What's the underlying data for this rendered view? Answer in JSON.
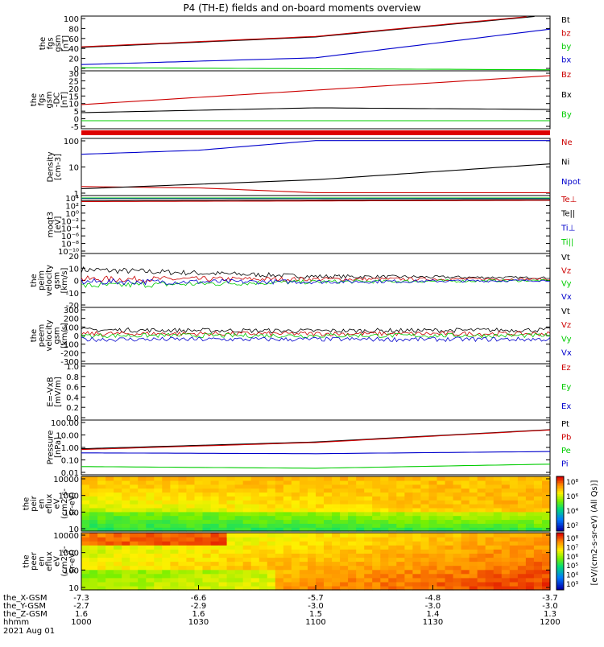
{
  "title": "P4 (TH-E) fields and on-board moments overview",
  "chart_data": [
    {
      "type": "line",
      "ylabel": [
        "the",
        "fgs",
        "gsm",
        "[nT]"
      ],
      "ticks": [
        "100",
        "80",
        "60",
        "40",
        "20",
        "0"
      ],
      "ylim": [
        -5,
        100
      ],
      "series": [
        {
          "name": "Bt",
          "color": "#000000",
          "x": [
            0,
            0.5,
            1
          ],
          "values": [
            40,
            60,
            102
          ]
        },
        {
          "name": "bz",
          "color": "#cc0000",
          "x": [
            0,
            0.5,
            1
          ],
          "values": [
            41,
            61,
            103
          ]
        },
        {
          "name": "by",
          "color": "#00cc00",
          "x": [
            0,
            0.5,
            1
          ],
          "values": [
            1,
            -1,
            -3
          ]
        },
        {
          "name": "bx",
          "color": "#0000cc",
          "x": [
            0,
            0.5,
            1
          ],
          "values": [
            7,
            20,
            75
          ]
        }
      ]
    },
    {
      "type": "line",
      "ylabel": [
        "the",
        "fgs",
        "gsm",
        "-DC",
        "[nT]"
      ],
      "ticks": [
        "30",
        "25",
        "20",
        "15",
        "10",
        "5",
        "0",
        "-5"
      ],
      "ylim": [
        -6,
        30
      ],
      "series": [
        {
          "name": "Bz",
          "color": "#cc0000",
          "x": [
            0,
            0.5,
            1
          ],
          "values": [
            9,
            18,
            27
          ]
        },
        {
          "name": "Bx",
          "color": "#000000",
          "x": [
            0,
            0.5,
            1
          ],
          "values": [
            4,
            7,
            6
          ]
        },
        {
          "name": "By",
          "color": "#00cc00",
          "x": [
            0,
            0.5,
            1
          ],
          "values": [
            -1,
            -1,
            -1
          ]
        }
      ]
    },
    {
      "type": "line",
      "ylabel": [
        "Density",
        "[cm-3]"
      ],
      "ticks": [
        "100",
        "10",
        "1"
      ],
      "log": true,
      "ylim": [
        0.6,
        200
      ],
      "series": [
        {
          "name": "Ne",
          "color": "#cc0000",
          "x": [
            0,
            0.25,
            0.5,
            1
          ],
          "values": [
            1.5,
            1.3,
            0.8,
            0.8
          ]
        },
        {
          "name": "Ni",
          "color": "#000000",
          "x": [
            0,
            0.5,
            1
          ],
          "values": [
            1.2,
            3,
            15
          ]
        },
        {
          "name": "Npot",
          "color": "#0000cc",
          "x": [
            0,
            0.25,
            0.5
          ],
          "values": [
            40,
            60,
            160
          ]
        }
      ]
    },
    {
      "type": "line",
      "ylabel": [
        "moqt3",
        "[eV]"
      ],
      "ticks": [
        "10⁴",
        "10²",
        "10⁰",
        "10⁻²",
        "10⁻⁴",
        "10⁻⁶",
        "10⁻⁸",
        "10⁻¹⁰"
      ],
      "log": true,
      "ylim": [
        -10,
        4.5
      ],
      "series": [
        {
          "name": "Te⊥",
          "color": "#cc0000",
          "x": [
            0,
            1
          ],
          "values": [
            3,
            3.3
          ]
        },
        {
          "name": "Te||",
          "color": "#000000",
          "x": [
            0,
            1
          ],
          "values": [
            3.3,
            3.5
          ]
        },
        {
          "name": "Ti⊥",
          "color": "#0000cc",
          "x": [
            0,
            1
          ],
          "values": [
            3.8,
            3.8
          ]
        },
        {
          "name": "Ti||",
          "color": "#00cc00",
          "x": [
            0,
            1
          ],
          "values": [
            3.9,
            3.9
          ]
        }
      ]
    },
    {
      "type": "line",
      "ylabel": [
        "the",
        "peim",
        "velocity",
        "gsm",
        "[km/s]"
      ],
      "ticks": [
        "20",
        "10",
        "0",
        "-10",
        "-20"
      ],
      "ylim": [
        -20,
        20
      ],
      "series": [
        {
          "name": "Vt",
          "color": "#000000",
          "x": [
            0,
            0.5,
            1
          ],
          "values": [
            8,
            3,
            2
          ]
        },
        {
          "name": "Vz",
          "color": "#cc0000",
          "x": [
            0,
            0.5,
            1
          ],
          "values": [
            1,
            1,
            1
          ]
        },
        {
          "name": "Vy",
          "color": "#00cc00",
          "x": [
            0,
            0.5,
            1
          ],
          "values": [
            -4,
            -1,
            0
          ]
        },
        {
          "name": "Vx",
          "color": "#0000cc",
          "x": [
            0,
            0.5,
            1
          ],
          "values": [
            -1,
            -1,
            0
          ]
        }
      ]
    },
    {
      "type": "line",
      "ylabel": [
        "the",
        "peem",
        "velocity",
        "gsm",
        "[km/s]"
      ],
      "ticks": [
        "300",
        "200",
        "100",
        "0",
        "-100",
        "-200",
        "-300"
      ],
      "ylim": [
        -300,
        300
      ],
      "series": [
        {
          "name": "Vt",
          "color": "#000000",
          "x": [
            0,
            0.5,
            1
          ],
          "values": [
            60,
            50,
            60
          ]
        },
        {
          "name": "Vz",
          "color": "#cc0000",
          "x": [
            0,
            0.5,
            1
          ],
          "values": [
            20,
            20,
            20
          ]
        },
        {
          "name": "Vy",
          "color": "#00cc00",
          "x": [
            0,
            0.5,
            1
          ],
          "values": [
            0,
            0,
            0
          ]
        },
        {
          "name": "Vx",
          "color": "#0000cc",
          "x": [
            0,
            0.5,
            1
          ],
          "values": [
            -40,
            -40,
            -40
          ]
        }
      ]
    },
    {
      "type": "line",
      "ylabel": [
        "E=-VxB",
        "[mV/m]"
      ],
      "ticks": [
        "1.0",
        "0.8",
        "0.6",
        "0.4",
        "0.2",
        "0.0"
      ],
      "ylim": [
        0,
        1
      ],
      "series": [
        {
          "name": "Ez",
          "color": "#cc0000",
          "x": [],
          "values": []
        },
        {
          "name": "Ey",
          "color": "#00cc00",
          "x": [],
          "values": []
        },
        {
          "name": "Ex",
          "color": "#0000cc",
          "x": [],
          "values": []
        }
      ]
    },
    {
      "type": "line",
      "ylabel": [
        "Pressure",
        "[nPa]"
      ],
      "ticks": [
        "100.00",
        "10.00",
        "1.00",
        "0.10",
        "0.01"
      ],
      "log": true,
      "ylim": [
        0.01,
        100
      ],
      "series": [
        {
          "name": "Pt",
          "color": "#000000",
          "x": [
            0,
            0.5,
            1
          ],
          "values": [
            0.8,
            2.5,
            20
          ]
        },
        {
          "name": "Pb",
          "color": "#cc0000",
          "x": [
            0,
            0.5,
            1
          ],
          "values": [
            0.7,
            2.3,
            19
          ]
        },
        {
          "name": "Pe",
          "color": "#00cc00",
          "x": [
            0,
            0.5,
            1
          ],
          "values": [
            0.04,
            0.03,
            0.06
          ]
        },
        {
          "name": "Pi",
          "color": "#0000cc",
          "x": [
            0,
            0.5,
            1
          ],
          "values": [
            0.4,
            0.35,
            0.5
          ]
        }
      ]
    },
    {
      "type": "heatmap",
      "ylabel": [
        "the",
        "peir",
        "en",
        "eflux",
        "eV",
        "(cm2-s-",
        "sr-eV)"
      ],
      "ticks": [
        "10000",
        "1000",
        "100",
        "10"
      ],
      "log": true,
      "ylim": [
        5,
        30000
      ]
    },
    {
      "type": "heatmap",
      "ylabel": [
        "the",
        "peer",
        "en",
        "eflux",
        "eV",
        "(cm2-s-",
        "sr-eV)"
      ],
      "ticks": [
        "10000",
        "1000",
        "100",
        "10"
      ],
      "log": true,
      "ylim": [
        5,
        30000
      ]
    }
  ],
  "colorbar": {
    "label": "[eV/(cm2-s-sr-eV)]",
    "label_upper": "[eV/(cm2-s-sr-eV) (All Qs)]",
    "ticks_upper": [
      "10⁸",
      "10⁶",
      "10⁴",
      "10²"
    ],
    "ticks_lower": [
      "10⁸",
      "10⁷",
      "10⁶",
      "10⁵",
      "10⁴",
      "10³"
    ]
  },
  "x_axis": {
    "rows": [
      {
        "label": "the_X-GSM",
        "values": [
          "-7.3",
          "-6.6",
          "-5.7",
          "-4.8",
          "-3.7"
        ]
      },
      {
        "label": "the_Y-GSM",
        "values": [
          "-2.7",
          "-2.9",
          "-3.0",
          "-3.0",
          "-3.0"
        ]
      },
      {
        "label": "the_Z-GSM",
        "values": [
          "1.6",
          "1.6",
          "1.5",
          "1.4",
          "1.3"
        ]
      },
      {
        "label": "hhmm",
        "values": [
          "1000",
          "1030",
          "1100",
          "1130",
          "1200"
        ]
      }
    ],
    "date": "2021 Aug 01"
  }
}
